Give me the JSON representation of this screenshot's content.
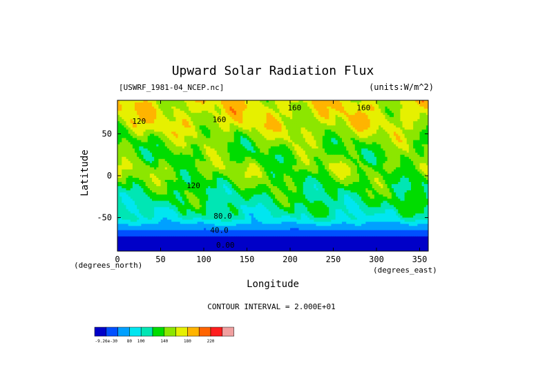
{
  "chart_data": {
    "type": "heatmap",
    "title": "Upward Solar Radiation Flux",
    "subtitle_left": "[USWRF_1981-04_NCEP.nc]",
    "subtitle_right": "(units:W/m^2)",
    "xlabel": "Longitude",
    "ylabel": "Latitude",
    "x_unit": "(degrees_east)",
    "y_unit": "(degrees_north)",
    "xlim": [
      0,
      360
    ],
    "ylim": [
      -90,
      90
    ],
    "x_ticks": [
      0,
      50,
      100,
      150,
      200,
      250,
      300,
      350
    ],
    "y_ticks": [
      -50,
      0,
      50
    ],
    "contour_interval_text": "CONTOUR INTERVAL = 2.000E+01",
    "contour_labels": [
      {
        "text": "160",
        "lon": 205,
        "lat": 78
      },
      {
        "text": "160",
        "lon": 285,
        "lat": 78
      },
      {
        "text": "160",
        "lon": 118,
        "lat": 64
      },
      {
        "text": "120",
        "lon": 25,
        "lat": 62
      },
      {
        "text": "120",
        "lon": 88,
        "lat": -15
      },
      {
        "text": "80.0",
        "lon": 122,
        "lat": -51
      },
      {
        "text": "40.0",
        "lon": 118,
        "lat": -68
      },
      {
        "text": "0.00",
        "lon": 125,
        "lat": -86
      }
    ],
    "colorbar": {
      "levels": [
        "-9.26e-30",
        "",
        "80",
        "100",
        "",
        "140",
        "",
        "180",
        "",
        "220",
        ""
      ],
      "colors": [
        "#0000c8",
        "#0050ff",
        "#00a0ff",
        "#00e6f0",
        "#00e6b4",
        "#00dc00",
        "#8ce600",
        "#e6f000",
        "#ffb400",
        "#ff6400",
        "#ff1e1e",
        "#f0a0a0"
      ]
    },
    "lat_profile": [
      {
        "lat": 90,
        "value": 150
      },
      {
        "lat": 80,
        "value": 150
      },
      {
        "lat": 70,
        "value": 148
      },
      {
        "lat": 60,
        "value": 145
      },
      {
        "lat": 50,
        "value": 135
      },
      {
        "lat": 40,
        "value": 125
      },
      {
        "lat": 30,
        "value": 120
      },
      {
        "lat": 20,
        "value": 118
      },
      {
        "lat": 10,
        "value": 128
      },
      {
        "lat": 0,
        "value": 122
      },
      {
        "lat": -10,
        "value": 112
      },
      {
        "lat": -20,
        "value": 105
      },
      {
        "lat": -30,
        "value": 100
      },
      {
        "lat": -40,
        "value": 92
      },
      {
        "lat": -50,
        "value": 82
      },
      {
        "lat": -55,
        "value": 68
      },
      {
        "lat": -60,
        "value": 52
      },
      {
        "lat": -65,
        "value": 38
      },
      {
        "lat": -70,
        "value": 22
      },
      {
        "lat": -80,
        "value": 8
      },
      {
        "lat": -90,
        "value": 0
      }
    ]
  }
}
